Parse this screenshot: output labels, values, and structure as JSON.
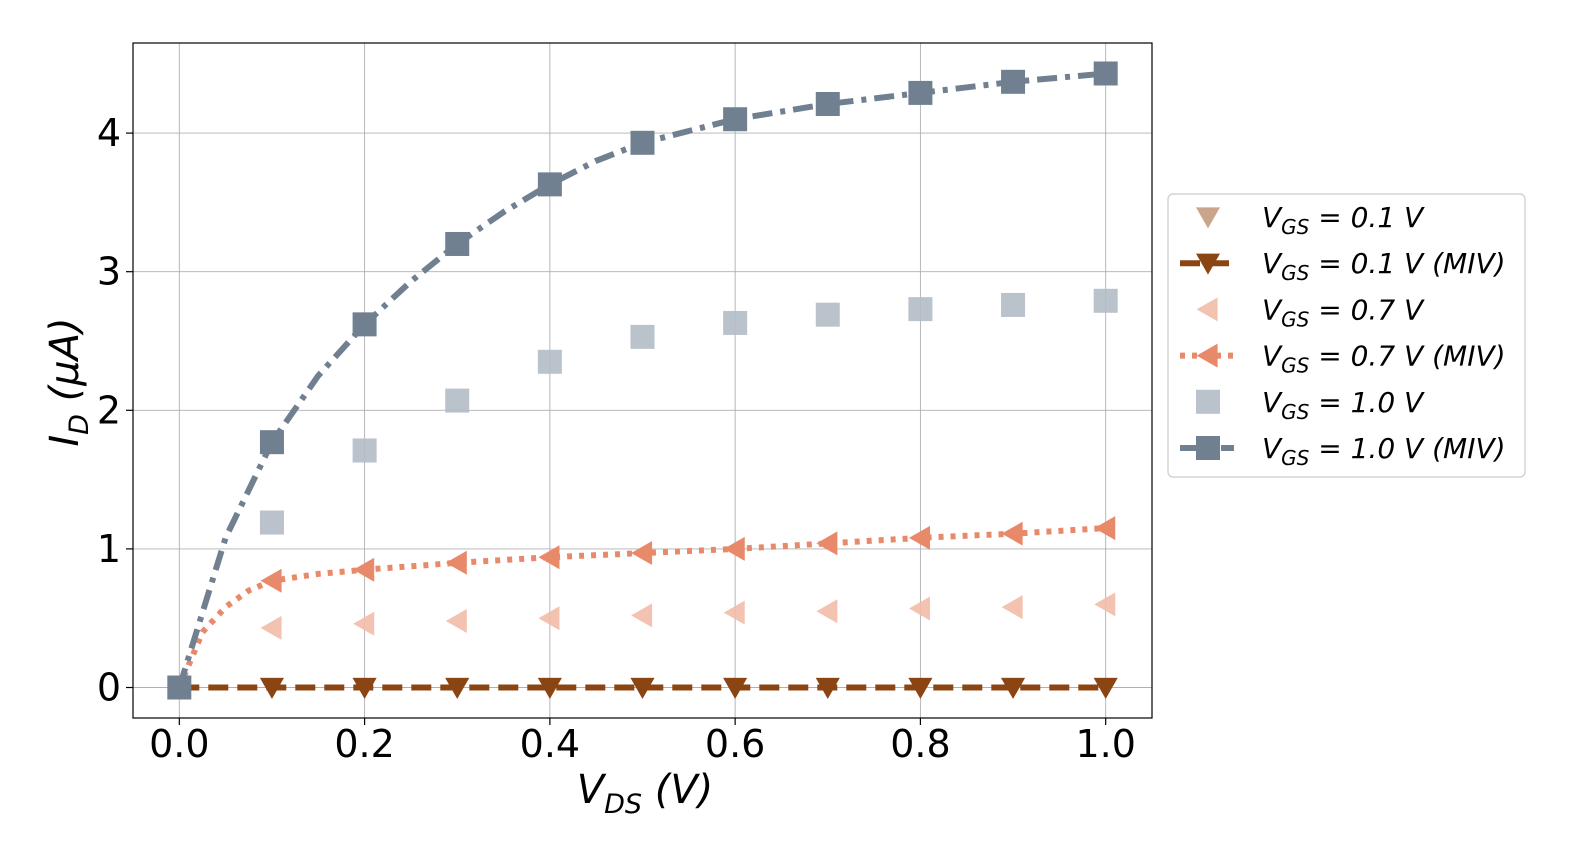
{
  "chart_data": {
    "type": "line",
    "xlabel": {
      "main": "V",
      "sub": "DS",
      "unit": " (V)"
    },
    "ylabel": {
      "main": "I",
      "sub": "D",
      "unit": " (μA)"
    },
    "xlim": [
      -0.05,
      1.05
    ],
    "ylim": [
      -0.22,
      4.65
    ],
    "xticks": [
      0.0,
      0.2,
      0.4,
      0.6,
      0.8,
      1.0
    ],
    "xtick_labels": [
      "0.0",
      "0.2",
      "0.4",
      "0.6",
      "0.8",
      "1.0"
    ],
    "yticks": [
      0,
      1,
      2,
      3,
      4
    ],
    "ytick_labels": [
      "0",
      "1",
      "2",
      "3",
      "4"
    ],
    "grid": true,
    "legend_position": "right-outside",
    "series": [
      {
        "name": "V_GS = 0.1 V",
        "legend": {
          "main": "V",
          "sub": "GS",
          "rest": " = 0.1 V"
        },
        "style": "markers",
        "marker": "triangle-down",
        "color": "#C49A7E",
        "x": [
          0.0,
          0.1,
          0.2,
          0.3,
          0.4,
          0.5,
          0.6,
          0.7,
          0.8,
          0.9,
          1.0
        ],
        "y": [
          0,
          0,
          0,
          0,
          0,
          0,
          0,
          0,
          0,
          0,
          0
        ]
      },
      {
        "name": "V_GS = 0.1 V (MIV)",
        "legend": {
          "main": "V",
          "sub": "GS",
          "rest": " = 0.1 V (MIV)"
        },
        "style": "line-markers",
        "line": "dashed",
        "marker": "triangle-down",
        "color": "#8B4513",
        "x": [
          0.0,
          0.1,
          0.2,
          0.3,
          0.4,
          0.5,
          0.6,
          0.7,
          0.8,
          0.9,
          1.0
        ],
        "y": [
          0,
          0,
          0,
          0,
          0,
          0,
          0,
          0,
          0,
          0,
          0
        ]
      },
      {
        "name": "V_GS = 0.7 V",
        "legend": {
          "main": "V",
          "sub": "GS",
          "rest": " = 0.7 V"
        },
        "style": "markers",
        "marker": "triangle-left",
        "color": "#F2BBA8",
        "x": [
          0.1,
          0.2,
          0.3,
          0.4,
          0.5,
          0.6,
          0.7,
          0.8,
          0.9,
          1.0
        ],
        "y": [
          0.43,
          0.46,
          0.48,
          0.5,
          0.52,
          0.54,
          0.55,
          0.57,
          0.58,
          0.6
        ]
      },
      {
        "name": "V_GS = 0.7 V (MIV)",
        "legend": {
          "main": "V",
          "sub": "GS",
          "rest": " = 0.7 V (MIV)"
        },
        "style": "line-markers",
        "line": "dotted",
        "marker": "triangle-left",
        "color": "#E8896A",
        "x": [
          0.1,
          0.2,
          0.3,
          0.4,
          0.5,
          0.6,
          0.7,
          0.8,
          0.9,
          1.0
        ],
        "y": [
          0.77,
          0.85,
          0.9,
          0.94,
          0.97,
          1.0,
          1.04,
          1.08,
          1.11,
          1.15
        ],
        "curve_x": [
          0.0,
          0.025,
          0.05,
          0.075,
          0.1,
          0.15,
          0.2,
          0.3,
          0.4,
          0.5,
          0.6,
          0.7,
          0.8,
          0.9,
          1.0
        ],
        "curve_y": [
          0.0,
          0.4,
          0.58,
          0.7,
          0.77,
          0.82,
          0.85,
          0.9,
          0.94,
          0.97,
          1.0,
          1.04,
          1.08,
          1.11,
          1.15
        ]
      },
      {
        "name": "V_GS = 1.0 V",
        "legend": {
          "main": "V",
          "sub": "GS",
          "rest": " = 1.0 V"
        },
        "style": "markers",
        "marker": "square",
        "color": "#B3BBC6",
        "x": [
          0.1,
          0.2,
          0.3,
          0.4,
          0.5,
          0.6,
          0.7,
          0.8,
          0.9,
          1.0
        ],
        "y": [
          1.19,
          1.71,
          2.07,
          2.35,
          2.53,
          2.63,
          2.69,
          2.73,
          2.76,
          2.79
        ]
      },
      {
        "name": "V_GS = 1.0 V (MIV)",
        "legend": {
          "main": "V",
          "sub": "GS",
          "rest": " = 1.0 V (MIV)"
        },
        "style": "line-markers",
        "line": "dashdot",
        "marker": "square",
        "color": "#708090",
        "x": [
          0.0,
          0.1,
          0.2,
          0.3,
          0.4,
          0.5,
          0.6,
          0.7,
          0.8,
          0.9,
          1.0
        ],
        "y": [
          0.0,
          1.77,
          2.62,
          3.2,
          3.63,
          3.93,
          4.1,
          4.21,
          4.29,
          4.37,
          4.43
        ],
        "curve_x": [
          0.0,
          0.05,
          0.1,
          0.15,
          0.2,
          0.25,
          0.3,
          0.35,
          0.4,
          0.45,
          0.5,
          0.6,
          0.7,
          0.8,
          0.9,
          1.0
        ],
        "curve_y": [
          0.0,
          1.08,
          1.77,
          2.25,
          2.62,
          2.93,
          3.2,
          3.43,
          3.63,
          3.8,
          3.93,
          4.1,
          4.21,
          4.29,
          4.37,
          4.43
        ]
      }
    ]
  }
}
